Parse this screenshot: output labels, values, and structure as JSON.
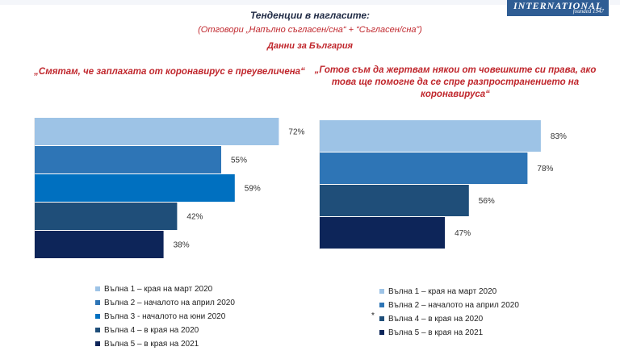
{
  "logo": {
    "name": "INTERNATIONAL",
    "founded": "founded 1947"
  },
  "header": {
    "title": "Тенденции в нагласите:",
    "subtitle": "(Отговори „Напълно съгласен/сна“ + “Съгласен/сна”)",
    "region": "Данни за България"
  },
  "colors": {
    "wave1": "#9dc3e6",
    "wave2": "#2e75b6",
    "wave3": "#0070c0",
    "wave4": "#1f4e79",
    "wave5": "#0d2559",
    "accent": "#c0272d"
  },
  "chart_data": [
    {
      "type": "bar",
      "orientation": "horizontal",
      "title": "„Смятам, че заплахата от коронавирус е преувеличена“",
      "categories": [
        "Вълна 1 – края на март 2020",
        "Вълна 2 – началото на април 2020",
        "Вълна 3 - началото на юни 2020",
        "Вълна 4 – в края на 2020",
        "Вълна 5 – в края на 2021"
      ],
      "values": [
        72,
        55,
        59,
        42,
        38
      ],
      "data_labels": [
        "72%",
        "55%",
        "59%",
        "42%",
        "38%"
      ],
      "xlim": [
        0,
        100
      ],
      "legend_position": "bottom"
    },
    {
      "type": "bar",
      "orientation": "horizontal",
      "title": "„Готов съм да жертвам някои от човешките си права, ако това ще помогне да се спре разпространението на коронавируса“",
      "categories": [
        "Вълна 1 – края на март 2020",
        "Вълна 2 – началото на април 2020",
        "Вълна 4 – в края на 2020",
        "Вълна 5 – в края на 2021"
      ],
      "values": [
        83,
        78,
        56,
        47
      ],
      "data_labels": [
        "83%",
        "78%",
        "56%",
        "47%"
      ],
      "xlim": [
        0,
        100
      ],
      "legend_position": "bottom",
      "note": "*"
    }
  ],
  "legend_left": [
    {
      "label": "Вълна 1 – края на март 2020",
      "color": "#9dc3e6"
    },
    {
      "label": "Вълна 2 – началото на април 2020",
      "color": "#2e75b6"
    },
    {
      "label": "Вълна 3 - началото на юни 2020",
      "color": "#0070c0"
    },
    {
      "label": "Вълна 4 – в края на 2020",
      "color": "#1f4e79"
    },
    {
      "label": "Вълна 5 – в края на 2021",
      "color": "#0d2559"
    }
  ],
  "legend_right": [
    {
      "label": "Вълна 1 – края на март 2020",
      "color": "#9dc3e6"
    },
    {
      "label": "Вълна 2 – началото на април 2020",
      "color": "#2e75b6"
    },
    {
      "label": "Вълна 4 – в края на 2020",
      "color": "#1f4e79"
    },
    {
      "label": "Вълна 5 – в края на 2021",
      "color": "#0d2559"
    }
  ],
  "legend_note": "*"
}
